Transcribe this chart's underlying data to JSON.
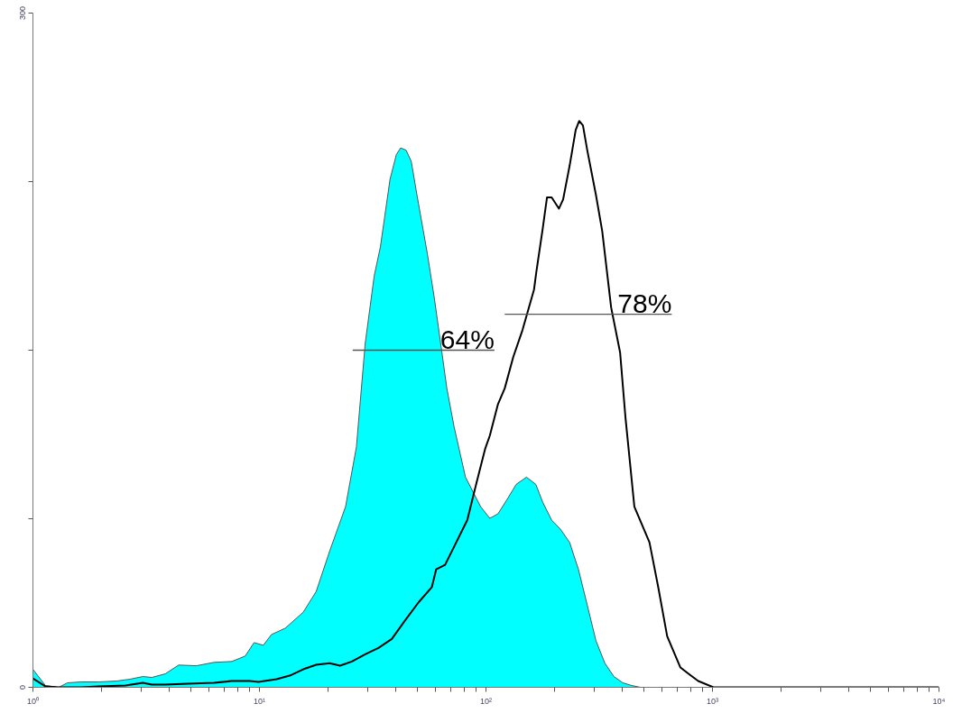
{
  "chart_data": {
    "type": "area",
    "log": "x",
    "grid": false,
    "xlim": [
      1,
      10000
    ],
    "ylim": [
      0,
      300
    ],
    "xticks": [
      {
        "value": 1,
        "label": "10⁰"
      },
      {
        "value": 2,
        "label": null
      },
      {
        "value": 3,
        "label": null
      },
      {
        "value": 4,
        "label": null
      },
      {
        "value": 5,
        "label": null
      },
      {
        "value": 6,
        "label": null
      },
      {
        "value": 7,
        "label": null
      },
      {
        "value": 8,
        "label": null
      },
      {
        "value": 9,
        "label": null
      },
      {
        "value": 10,
        "label": "10¹"
      },
      {
        "value": 20,
        "label": null
      },
      {
        "value": 30,
        "label": null
      },
      {
        "value": 40,
        "label": null
      },
      {
        "value": 50,
        "label": null
      },
      {
        "value": 60,
        "label": null
      },
      {
        "value": 70,
        "label": null
      },
      {
        "value": 80,
        "label": null
      },
      {
        "value": 90,
        "label": null
      },
      {
        "value": 100,
        "label": "10²"
      },
      {
        "value": 200,
        "label": null
      },
      {
        "value": 300,
        "label": null
      },
      {
        "value": 400,
        "label": null
      },
      {
        "value": 500,
        "label": null
      },
      {
        "value": 600,
        "label": null
      },
      {
        "value": 700,
        "label": null
      },
      {
        "value": 800,
        "label": null
      },
      {
        "value": 900,
        "label": null
      },
      {
        "value": 1000,
        "label": "10³"
      },
      {
        "value": 2000,
        "label": null
      },
      {
        "value": 3000,
        "label": null
      },
      {
        "value": 4000,
        "label": null
      },
      {
        "value": 5000,
        "label": null
      },
      {
        "value": 6000,
        "label": null
      },
      {
        "value": 7000,
        "label": null
      },
      {
        "value": 8000,
        "label": null
      },
      {
        "value": 9000,
        "label": null
      },
      {
        "value": 10000,
        "label": "10⁴"
      }
    ],
    "yticks": [
      0,
      {
        "value": 75,
        "label": null
      },
      {
        "value": 150,
        "label": null
      },
      {
        "value": 225,
        "label": null
      },
      300
    ],
    "series": [
      {
        "type": "area",
        "color": "#00ffff",
        "x": [
          1.0,
          1.135,
          1.3,
          1.42,
          1.63,
          1.95,
          2.34,
          2.68,
          3.06,
          3.35,
          3.84,
          4.4,
          5.27,
          6.31,
          7.56,
          8.65,
          9.47,
          10.4,
          11.3,
          13.0,
          15.6,
          17.8,
          20.4,
          24.0,
          26.8,
          29.3,
          32.1,
          34.2,
          37.7,
          40.2,
          42.0,
          44.4,
          46.8,
          49.4,
          55.1,
          59.2,
          63.1,
          67.2,
          72.3,
          81.2,
          94.7,
          104,
          113,
          124,
          136,
          151,
          166,
          178,
          195,
          213,
          234,
          256,
          280,
          306,
          335,
          367,
          402,
          440,
          481,
          576
        ],
        "values": [
          8.0,
          0.8,
          0,
          2.0,
          2.4,
          2.4,
          2.8,
          3.6,
          4.8,
          4.4,
          6.0,
          9.9,
          9.6,
          11.1,
          11.5,
          13.9,
          19.9,
          18.7,
          23.5,
          26.3,
          33.4,
          42.6,
          60.5,
          80.4,
          107,
          153,
          183,
          196,
          226,
          237,
          240,
          239,
          234,
          220,
          193,
          173,
          153,
          133,
          116,
          93.5,
          80.4,
          75.2,
          77.2,
          83.6,
          90.3,
          93.5,
          90.3,
          82.4,
          74.4,
          70.4,
          64.5,
          52.5,
          36.6,
          20.7,
          10.7,
          4.8,
          2.0,
          0.8,
          0,
          0
        ]
      },
      {
        "type": "line",
        "color": "#000000",
        "x": [
          1.0,
          1.135,
          1.3,
          1.63,
          1.95,
          2.56,
          3.06,
          3.35,
          3.84,
          4.81,
          6.31,
          7.56,
          9.05,
          9.91,
          11.9,
          13.6,
          15.6,
          17.8,
          20.4,
          22.7,
          25.6,
          29.3,
          33.5,
          38.4,
          44.0,
          50.4,
          57.7,
          60.3,
          66.0,
          72.3,
          82.7,
          90.5,
          99.1,
          104,
          113,
          121,
          132,
          145,
          163,
          167,
          178,
          186,
          195,
          210,
          219,
          234,
          249,
          258,
          268,
          280,
          306,
          326,
          357,
          391,
          413,
          452,
          527,
          576,
          631,
          722,
          865,
          1010,
          1360,
          10000
        ],
        "values": [
          4.0,
          0.4,
          0,
          0,
          0.4,
          0.8,
          2.0,
          1.2,
          1.2,
          1.6,
          2.0,
          2.8,
          2.8,
          2.4,
          3.6,
          5.2,
          8.0,
          10.0,
          10.7,
          9.6,
          11.5,
          14.7,
          17.5,
          21.5,
          29.8,
          37.8,
          44.6,
          52.5,
          54.5,
          62.5,
          74.4,
          90.3,
          106,
          112,
          126,
          133,
          147,
          159,
          177,
          185,
          204,
          218,
          218,
          213,
          217,
          232,
          248,
          252,
          250,
          239,
          219,
          203,
          169,
          149,
          120,
          80.4,
          64.5,
          44.6,
          22.7,
          8.8,
          2.8,
          0,
          0,
          0
        ]
      },
      {
        "type": "line",
        "color": "#555555",
        "x": [
          25.8,
          109
        ],
        "values": [
          150,
          150
        ]
      },
      {
        "type": "line",
        "color": "#555555",
        "x": [
          121,
          661
        ],
        "values": [
          166,
          166
        ]
      }
    ],
    "annotations": [
      {
        "text": "64%",
        "x": 109,
        "y": 150
      },
      {
        "text": "78%",
        "x": 661,
        "y": 166
      }
    ]
  }
}
